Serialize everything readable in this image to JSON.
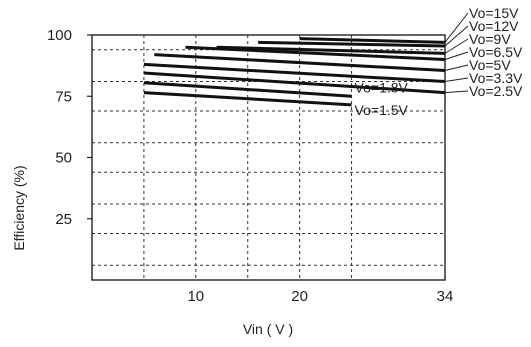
{
  "chart_data": {
    "type": "line",
    "xlabel": "Vin ( V )",
    "ylabel": "Efficiency (%)",
    "xlim": [
      0,
      34
    ],
    "ylim": [
      0,
      100
    ],
    "grid": true,
    "y_ticks": [
      {
        "value": 100,
        "label": "100"
      },
      {
        "value": 75,
        "label": "75"
      },
      {
        "value": 50,
        "label": "50"
      },
      {
        "value": 25,
        "label": "25"
      }
    ],
    "x_ticks": [
      {
        "value": 10,
        "label": "10"
      },
      {
        "value": 20,
        "label": "20"
      },
      {
        "value": 34,
        "label": "34"
      }
    ],
    "x_gridlines": [
      5,
      10,
      15,
      20,
      25,
      34
    ],
    "y_gridlines": [
      6,
      19,
      31,
      44,
      56,
      69,
      81,
      94
    ],
    "series": [
      {
        "name": "Vo=15V",
        "x": [
          20,
          34
        ],
        "y": [
          98.5,
          97.0
        ]
      },
      {
        "name": "Vo=12V",
        "x": [
          16,
          34
        ],
        "y": [
          97.0,
          95.5
        ]
      },
      {
        "name": "Vo=9V",
        "x": [
          12,
          34
        ],
        "y": [
          95.0,
          92.5
        ]
      },
      {
        "name": "Vo=6.5V",
        "x": [
          9,
          34
        ],
        "y": [
          95.0,
          90.0
        ]
      },
      {
        "name": "Vo=5V",
        "x": [
          6,
          34
        ],
        "y": [
          92.0,
          85.5
        ]
      },
      {
        "name": "Vo=3.3V",
        "x": [
          5,
          34
        ],
        "y": [
          88.0,
          81.0
        ]
      },
      {
        "name": "Vo=2.5V",
        "x": [
          5,
          34
        ],
        "y": [
          84.5,
          76.5
        ]
      },
      {
        "name": "Vo=1.8V",
        "x": [
          5,
          25
        ],
        "y": [
          80.5,
          75.0
        ]
      },
      {
        "name": "Vo=1.5V",
        "x": [
          5,
          25
        ],
        "y": [
          76.5,
          71.5
        ]
      }
    ]
  }
}
